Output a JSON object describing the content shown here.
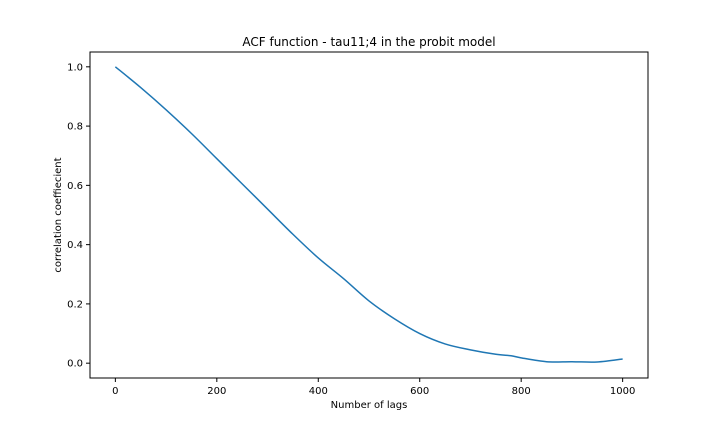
{
  "chart_data": {
    "type": "line",
    "title": "ACF function - tau11;4 in the probit model",
    "xlabel": "Number of lags",
    "ylabel": "correlation coeffiecient",
    "xlim": [
      -50,
      1050
    ],
    "ylim": [
      -0.05,
      1.05
    ],
    "xticks": [
      0,
      200,
      400,
      600,
      800,
      1000
    ],
    "yticks": [
      0.0,
      0.2,
      0.4,
      0.6,
      0.8,
      1.0
    ],
    "xtick_labels": [
      "0",
      "200",
      "400",
      "600",
      "800",
      "1000"
    ],
    "ytick_labels": [
      "0.0",
      "0.2",
      "0.4",
      "0.6",
      "0.8",
      "1.0"
    ],
    "grid": false,
    "line_color": "#1f77b4",
    "series": [
      {
        "x": [
          0,
          50,
          100,
          150,
          200,
          250,
          300,
          350,
          400,
          450,
          500,
          550,
          600,
          650,
          700,
          750,
          780,
          800,
          850,
          900,
          950,
          1000
        ],
        "y": [
          1.0,
          0.93,
          0.855,
          0.775,
          0.69,
          0.605,
          0.52,
          0.435,
          0.355,
          0.285,
          0.21,
          0.15,
          0.1,
          0.065,
          0.045,
          0.03,
          0.025,
          0.018,
          0.005,
          0.005,
          0.004,
          0.014
        ]
      }
    ]
  }
}
